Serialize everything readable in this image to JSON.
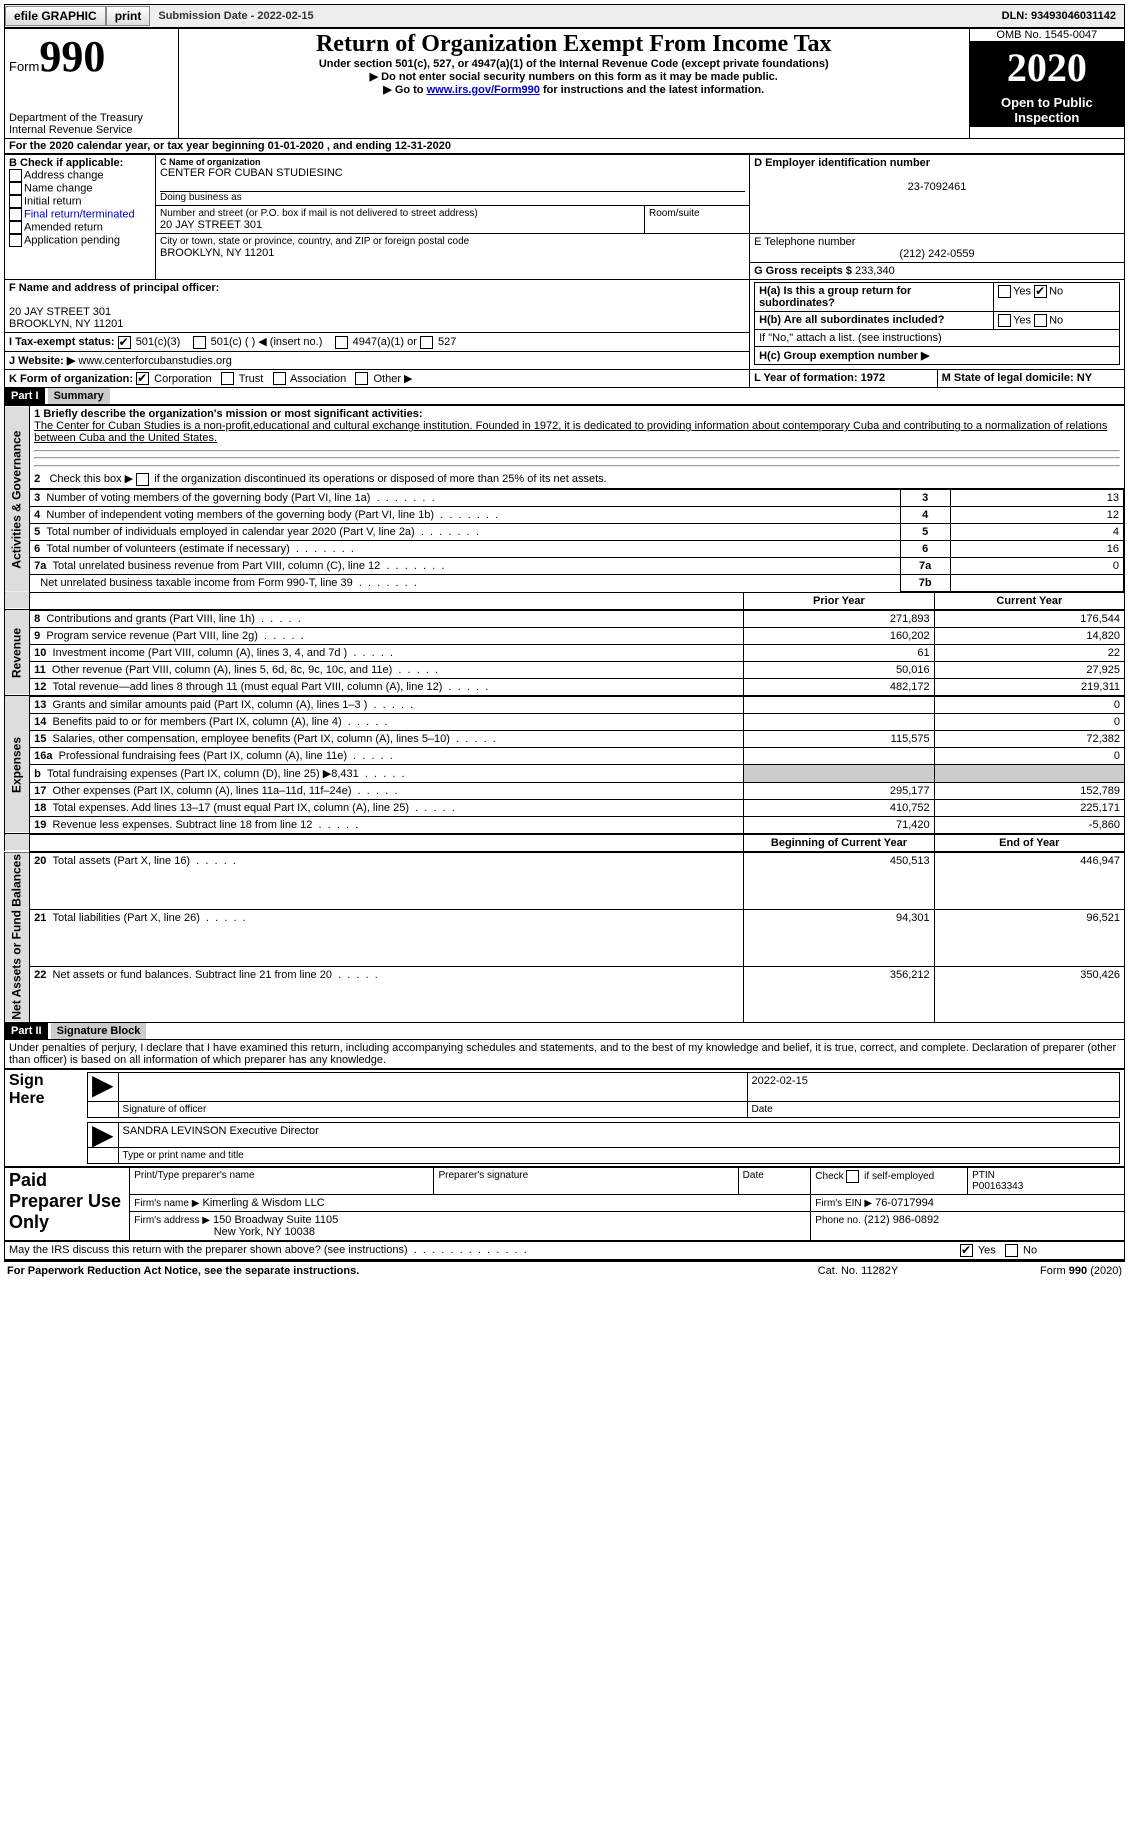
{
  "topbar": {
    "efile": "efile GRAPHIC",
    "print": "print",
    "submission_label": "Submission Date - 2022-02-15",
    "dln": "DLN: 93493046031142"
  },
  "header": {
    "form_label": "Form",
    "form_number": "990",
    "dept": "Department of the Treasury\nInternal Revenue Service",
    "title": "Return of Organization Exempt From Income Tax",
    "subtitle": "Under section 501(c), 527, or 4947(a)(1) of the Internal Revenue Code (except private foundations)",
    "note1": "▶ Do not enter social security numbers on this form as it may be made public.",
    "note2_pre": "▶ Go to ",
    "note2_link": "www.irs.gov/Form990",
    "note2_post": " for instructions and the latest information.",
    "omb": "OMB No. 1545-0047",
    "year": "2020",
    "open": "Open to Public Inspection"
  },
  "line_a": "For the 2020 calendar year, or tax year beginning 01-01-2020   , and ending 12-31-2020",
  "section_b": {
    "label": "B Check if applicable:",
    "items": [
      "Address change",
      "Name change",
      "Initial return",
      "Final return/terminated",
      "Amended return",
      "Application pending"
    ]
  },
  "section_c": {
    "name_label": "C Name of organization",
    "name": "CENTER FOR CUBAN STUDIESINC",
    "dba_label": "Doing business as",
    "street_label": "Number and street (or P.O. box if mail is not delivered to street address)",
    "room_label": "Room/suite",
    "street": "20 JAY STREET 301",
    "city_label": "City or town, state or province, country, and ZIP or foreign postal code",
    "city": "BROOKLYN, NY  11201"
  },
  "section_d": {
    "label": "D Employer identification number",
    "value": "23-7092461"
  },
  "section_e": {
    "label": "E Telephone number",
    "value": "(212) 242-0559"
  },
  "section_g": {
    "label": "G Gross receipts $",
    "value": "233,340"
  },
  "section_f": {
    "label": "F Name and address of principal officer:",
    "line1": "20 JAY STREET 301",
    "line2": "BROOKLYN, NY  11201"
  },
  "section_h": {
    "a_label": "H(a)  Is this a group return for subordinates?",
    "b_label": "H(b)  Are all subordinates included?",
    "b_note": "If \"No,\" attach a list. (see instructions)",
    "c_label": "H(c)  Group exemption number ▶",
    "yes": "Yes",
    "no": "No"
  },
  "section_i": {
    "label": "I    Tax-exempt status:",
    "opt1": "501(c)(3)",
    "opt2": "501(c) (  ) ◀ (insert no.)",
    "opt3": "4947(a)(1) or",
    "opt4": "527"
  },
  "section_j": {
    "label": "J    Website: ▶",
    "value": "www.centerforcubanstudies.org"
  },
  "section_k": {
    "label": "K Form of organization:",
    "opt1": "Corporation",
    "opt2": "Trust",
    "opt3": "Association",
    "opt4": "Other ▶"
  },
  "section_l": {
    "label": "L Year of formation: 1972"
  },
  "section_m": {
    "label": "M State of legal domicile: NY"
  },
  "part1": {
    "label": "Part I",
    "title": "Summary"
  },
  "summary": {
    "q1_label": "1  Briefly describe the organization's mission or most significant activities:",
    "q1_text": "The Center for Cuban Studies is a non-profit,educational and cultural exchange institution. Founded in 1972, it is dedicated to providing information about contemporary Cuba and contributing to a normalization of relations between Cuba and the United States.",
    "q2": "2   Check this box ▶       if the organization discontinued its operations or disposed of more than 25% of its net assets.",
    "lines": [
      {
        "n": "3",
        "text": "Number of voting members of the governing body (Part VI, line 1a)",
        "box": "3",
        "val": "13"
      },
      {
        "n": "4",
        "text": "Number of independent voting members of the governing body (Part VI, line 1b)",
        "box": "4",
        "val": "12"
      },
      {
        "n": "5",
        "text": "Total number of individuals employed in calendar year 2020 (Part V, line 2a)",
        "box": "5",
        "val": "4"
      },
      {
        "n": "6",
        "text": "Total number of volunteers (estimate if necessary)",
        "box": "6",
        "val": "16"
      },
      {
        "n": "7a",
        "text": "Total unrelated business revenue from Part VIII, column (C), line 12",
        "box": "7a",
        "val": "0"
      },
      {
        "n": "",
        "text": "Net unrelated business taxable income from Form 990-T, line 39",
        "box": "7b",
        "val": ""
      }
    ],
    "colheaders": {
      "prior": "Prior Year",
      "current": "Current Year"
    },
    "sidelabels": {
      "gov": "Activities & Governance",
      "rev": "Revenue",
      "exp": "Expenses",
      "net": "Net Assets or Fund Balances"
    },
    "revenue": [
      {
        "n": "8",
        "text": "Contributions and grants (Part VIII, line 1h)",
        "prior": "271,893",
        "current": "176,544"
      },
      {
        "n": "9",
        "text": "Program service revenue (Part VIII, line 2g)",
        "prior": "160,202",
        "current": "14,820"
      },
      {
        "n": "10",
        "text": "Investment income (Part VIII, column (A), lines 3, 4, and 7d )",
        "prior": "61",
        "current": "22"
      },
      {
        "n": "11",
        "text": "Other revenue (Part VIII, column (A), lines 5, 6d, 8c, 9c, 10c, and 11e)",
        "prior": "50,016",
        "current": "27,925"
      },
      {
        "n": "12",
        "text": "Total revenue—add lines 8 through 11 (must equal Part VIII, column (A), line 12)",
        "prior": "482,172",
        "current": "219,311"
      }
    ],
    "expenses": [
      {
        "n": "13",
        "text": "Grants and similar amounts paid (Part IX, column (A), lines 1–3 )",
        "prior": "",
        "current": "0"
      },
      {
        "n": "14",
        "text": "Benefits paid to or for members (Part IX, column (A), line 4)",
        "prior": "",
        "current": "0"
      },
      {
        "n": "15",
        "text": "Salaries, other compensation, employee benefits (Part IX, column (A), lines 5–10)",
        "prior": "115,575",
        "current": "72,382"
      },
      {
        "n": "16a",
        "text": "Professional fundraising fees (Part IX, column (A), line 11e)",
        "prior": "",
        "current": "0"
      },
      {
        "n": "b",
        "text": "Total fundraising expenses (Part IX, column (D), line 25) ▶8,431",
        "prior": "SHADE",
        "current": "SHADE"
      },
      {
        "n": "17",
        "text": "Other expenses (Part IX, column (A), lines 11a–11d, 11f–24e)",
        "prior": "295,177",
        "current": "152,789"
      },
      {
        "n": "18",
        "text": "Total expenses. Add lines 13–17 (must equal Part IX, column (A), line 25)",
        "prior": "410,752",
        "current": "225,171"
      },
      {
        "n": "19",
        "text": "Revenue less expenses. Subtract line 18 from line 12",
        "prior": "71,420",
        "current": "-5,860"
      }
    ],
    "netheaders": {
      "begin": "Beginning of Current Year",
      "end": "End of Year"
    },
    "netassets": [
      {
        "n": "20",
        "text": "Total assets (Part X, line 16)",
        "prior": "450,513",
        "current": "446,947"
      },
      {
        "n": "21",
        "text": "Total liabilities (Part X, line 26)",
        "prior": "94,301",
        "current": "96,521"
      },
      {
        "n": "22",
        "text": "Net assets or fund balances. Subtract line 21 from line 20",
        "prior": "356,212",
        "current": "350,426"
      }
    ]
  },
  "part2": {
    "label": "Part II",
    "title": "Signature Block"
  },
  "sig": {
    "declaration": "Under penalties of perjury, I declare that I have examined this return, including accompanying schedules and statements, and to the best of my knowledge and belief, it is true, correct, and complete. Declaration of preparer (other than officer) is based on all information of which preparer has any knowledge.",
    "signhere": "Sign Here",
    "sig_officer": "Signature of officer",
    "date_label": "Date",
    "date": "2022-02-15",
    "name_title": "SANDRA LEVINSON  Executive Director",
    "type_label": "Type or print name and title",
    "paid": "Paid Preparer Use Only",
    "print_label": "Print/Type preparer's name",
    "prep_sig_label": "Preparer's signature",
    "check_self": "Check        if self-employed",
    "ptin_label": "PTIN",
    "ptin": "P00163343",
    "firm_name_label": "Firm's name     ▶",
    "firm_name": "Kimerling & Wisdom LLC",
    "firm_ein_label": "Firm's EIN ▶",
    "firm_ein": "76-0717994",
    "firm_addr_label": "Firm's address ▶",
    "firm_addr1": "150 Broadway Suite 1105",
    "firm_addr2": "New York, NY  10038",
    "phone_label": "Phone no.",
    "phone": "(212) 986-0892",
    "may_irs": "May the IRS discuss this return with the preparer shown above? (see instructions)",
    "yes": "Yes",
    "no": "No"
  },
  "footer": {
    "paperwork": "For Paperwork Reduction Act Notice, see the separate instructions.",
    "cat": "Cat. No. 11282Y",
    "form": "Form 990 (2020)"
  }
}
